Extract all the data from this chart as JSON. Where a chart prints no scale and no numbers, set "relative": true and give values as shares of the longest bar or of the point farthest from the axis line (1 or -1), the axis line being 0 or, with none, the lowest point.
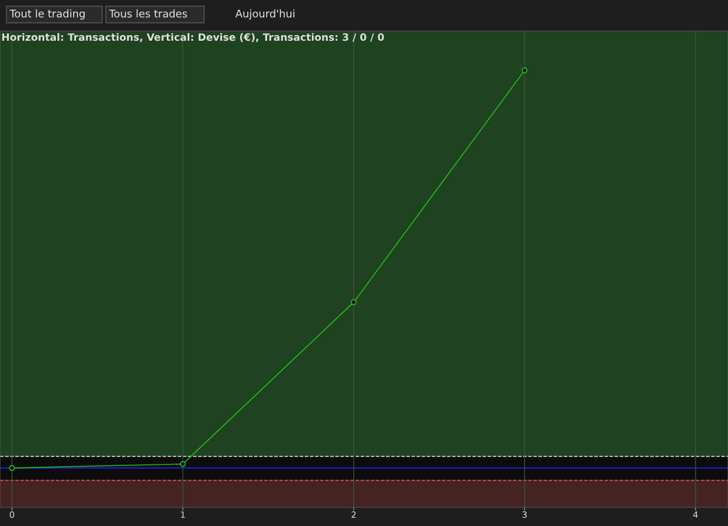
{
  "chart_data": {
    "type": "line",
    "title": "Horizontal: Transactions, Vertical: Devise (€), Transactions: 3 / 0 / 0",
    "annotations": [
      "Tout le trading",
      "Tous les trades",
      "Aujourd'hui"
    ],
    "x": [
      0,
      1,
      2,
      3
    ],
    "series": [
      {
        "color": "#22c322",
        "values": [
          0,
          0.01,
          0.417,
          1
        ]
      }
    ],
    "relative": true,
    "xlim": [
      -0.07,
      4.19
    ],
    "xticks": [
      0,
      1,
      2,
      3,
      4
    ],
    "bands": [
      {
        "axis": "y",
        "from": 0.029,
        "to": 1.099,
        "color": "#1f4220"
      },
      {
        "axis": "y",
        "from": -0.099,
        "to": -0.031,
        "color": "#452323"
      }
    ],
    "ref_lines": [
      {
        "axis": "y",
        "value": 0.029,
        "color": "#cfcfcf",
        "line_style": "dashed"
      },
      {
        "axis": "y",
        "value": 0,
        "color": "#2020ff",
        "line_style": "solid"
      },
      {
        "axis": "y",
        "value": -0.031,
        "color": "#ff6060",
        "line_style": "dashed"
      }
    ],
    "grid": "x",
    "marker": "circle",
    "line_style": "solid"
  }
}
